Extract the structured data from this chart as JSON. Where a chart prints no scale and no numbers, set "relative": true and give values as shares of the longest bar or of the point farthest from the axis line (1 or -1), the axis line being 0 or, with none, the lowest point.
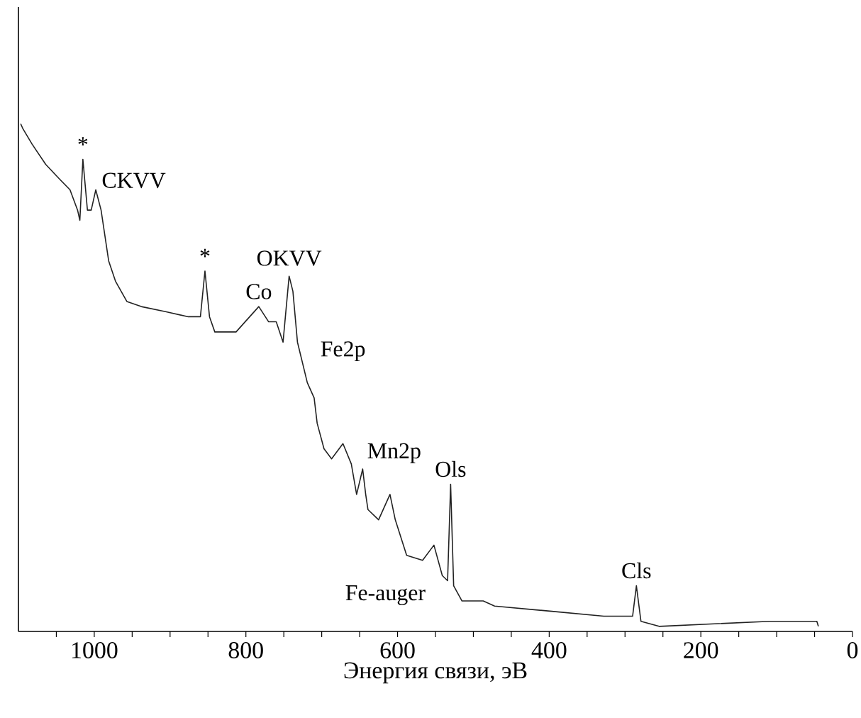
{
  "chart_data": {
    "type": "line",
    "relative": true,
    "xlabel": "Энергия связи, эВ",
    "xlim": [
      1100,
      0
    ],
    "xticks": [
      {
        "value": 1050,
        "label": null
      },
      1000,
      {
        "value": 950,
        "label": null
      },
      {
        "value": 900,
        "label": null
      },
      {
        "value": 850,
        "label": null
      },
      800,
      {
        "value": 750,
        "label": null
      },
      {
        "value": 700,
        "label": null
      },
      {
        "value": 650,
        "label": null
      },
      600,
      {
        "value": 550,
        "label": null
      },
      {
        "value": 500,
        "label": null
      },
      {
        "value": 450,
        "label": null
      },
      400,
      {
        "value": 350,
        "label": null
      },
      {
        "value": 300,
        "label": null
      },
      {
        "value": 250,
        "label": null
      },
      200,
      {
        "value": 150,
        "label": null
      },
      {
        "value": 100,
        "label": null
      },
      {
        "value": 50,
        "label": null
      },
      0
    ],
    "series": [
      {
        "color": "#222222",
        "x": [
          1097,
          1094,
          1082,
          1064,
          1045,
          1032,
          1022,
          1019,
          1015,
          1009,
          1004,
          998,
          991,
          981,
          972,
          957,
          938,
          906,
          876,
          860,
          854,
          848,
          841,
          813,
          783,
          770,
          760,
          751,
          743,
          738,
          732,
          719,
          710,
          706,
          697,
          687,
          672,
          661,
          654,
          646,
          642,
          639,
          625,
          610,
          603,
          588,
          567,
          552,
          541,
          534,
          530,
          526,
          515,
          487,
          472,
          399,
          328,
          290,
          285,
          279,
          255,
          109,
          47,
          45
        ],
        "values": [
          1.0,
          0.99,
          0.96,
          0.92,
          0.89,
          0.87,
          0.83,
          0.81,
          0.93,
          0.83,
          0.83,
          0.87,
          0.83,
          0.73,
          0.69,
          0.65,
          0.64,
          0.63,
          0.62,
          0.62,
          0.71,
          0.62,
          0.59,
          0.59,
          0.64,
          0.61,
          0.61,
          0.57,
          0.7,
          0.67,
          0.57,
          0.49,
          0.46,
          0.41,
          0.36,
          0.34,
          0.37,
          0.33,
          0.27,
          0.32,
          0.27,
          0.24,
          0.22,
          0.27,
          0.22,
          0.15,
          0.14,
          0.17,
          0.11,
          0.1,
          0.29,
          0.09,
          0.06,
          0.06,
          0.05,
          0.04,
          0.03,
          0.03,
          0.09,
          0.02,
          0.01,
          0.02,
          0.02,
          0.01
        ]
      }
    ],
    "annotations": [
      {
        "text": "*",
        "x": 1015,
        "y": 0.93
      },
      {
        "text": "CKVV",
        "x": 998,
        "y": 0.87
      },
      {
        "text": "*",
        "x": 854,
        "y": 0.71
      },
      {
        "text": "Co",
        "x": 783,
        "y": 0.64
      },
      {
        "text": "OKVV",
        "x": 743,
        "y": 0.7
      },
      {
        "text": "Fe2p",
        "x": 719,
        "y": 0.49
      },
      {
        "text": "Mn2p",
        "x": 646,
        "y": 0.32
      },
      {
        "text": "Ols",
        "x": 530,
        "y": 0.29
      },
      {
        "text": "Fe-auger",
        "x": 588,
        "y": 0.15
      },
      {
        "text": "Cls",
        "x": 285,
        "y": 0.09
      }
    ],
    "grid": false,
    "marker": "none",
    "line_style": "solid"
  }
}
